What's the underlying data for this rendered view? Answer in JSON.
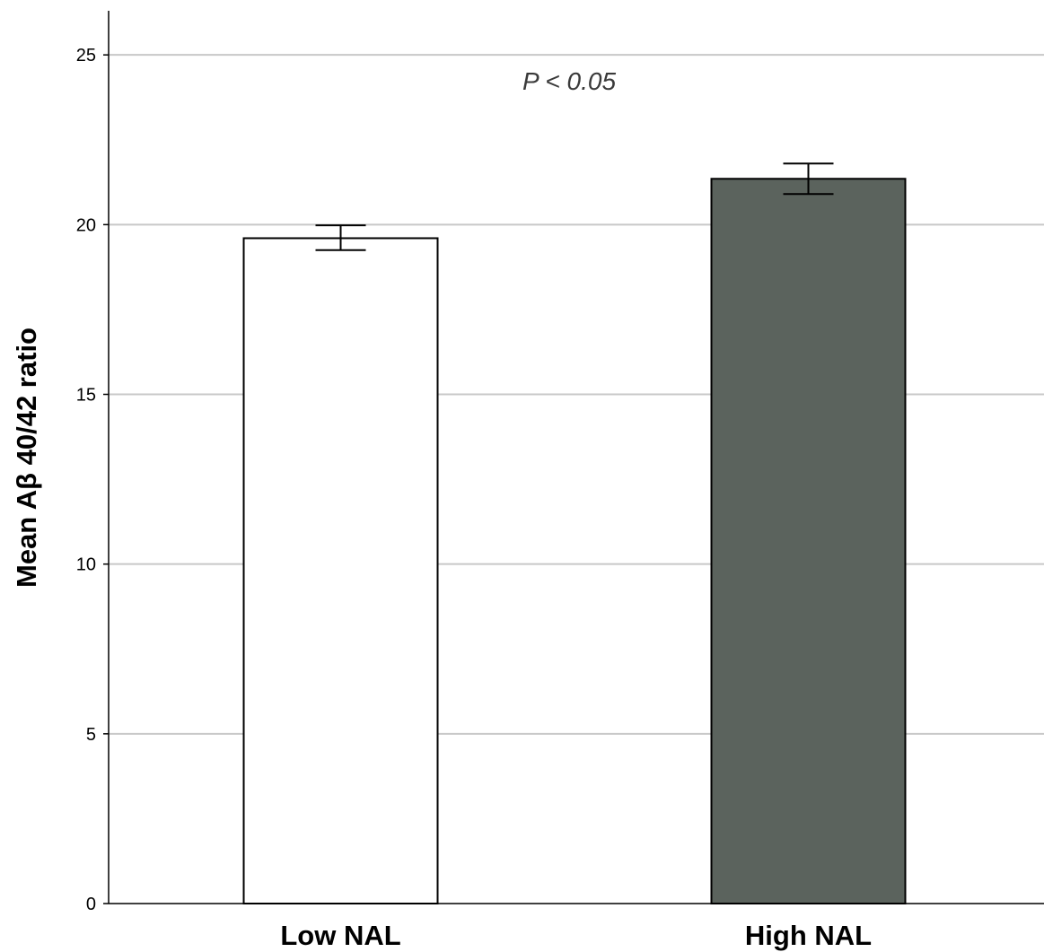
{
  "chart_data": {
    "type": "bar",
    "categories": [
      "Low NAL",
      "High NAL"
    ],
    "values": [
      19.6,
      21.35
    ],
    "error_bars": [
      {
        "low": 19.25,
        "high": 19.98
      },
      {
        "low": 20.9,
        "high": 21.8
      }
    ],
    "bar_colors": [
      "#ffffff",
      "#5b635d"
    ],
    "title": "",
    "xlabel": "",
    "ylabel": "Mean Aβ 40/42 ratio",
    "ylim": [
      0,
      26.3
    ],
    "yticks": [
      0,
      5,
      10,
      15,
      20,
      25
    ],
    "grid": true,
    "annotation": "P < 0.05"
  }
}
